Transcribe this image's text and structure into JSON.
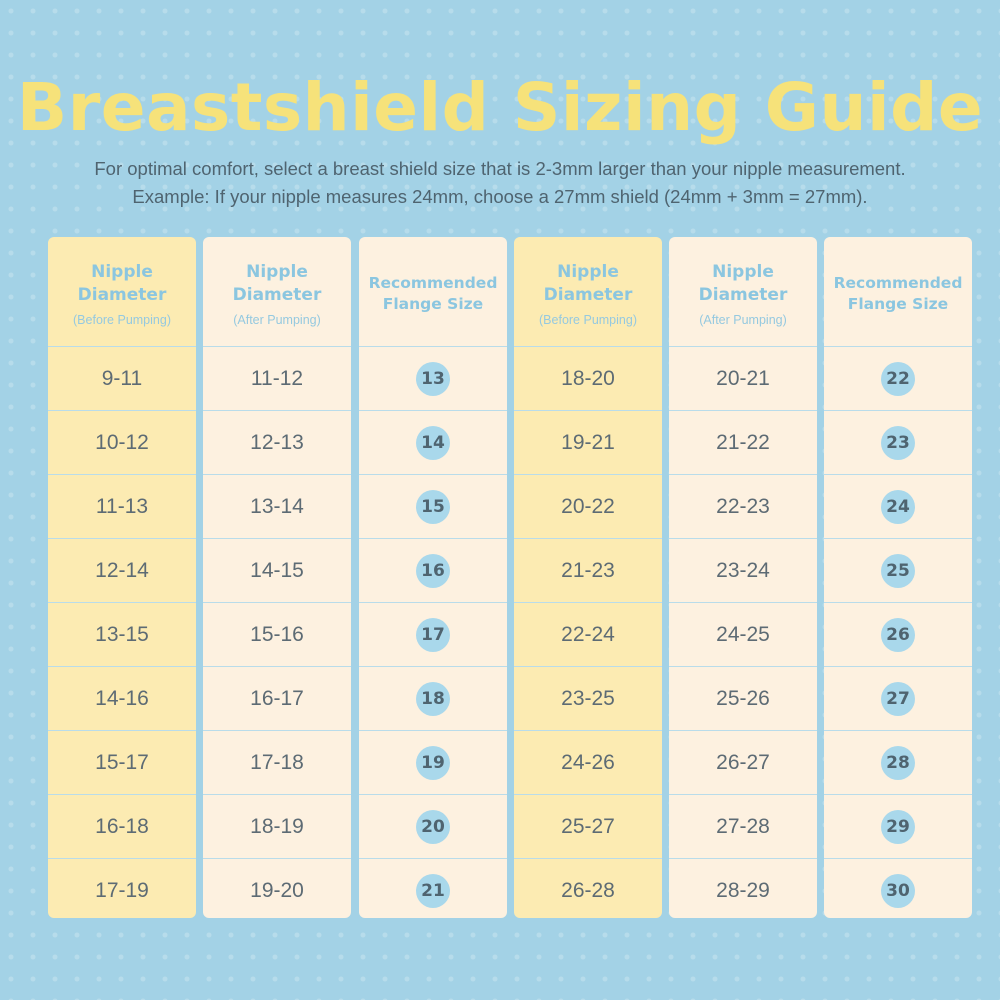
{
  "title": "Breastshield Sizing Guide",
  "subtitle_line1": "For optimal comfort, select a breast shield size that is 2-3mm larger than your nipple measurement.",
  "subtitle_line2": "Example: If your nipple measures 24mm, choose a 27mm shield (24mm + 3mm = 27mm).",
  "colors": {
    "background": "#a3d2e6",
    "title": "#f6e27a",
    "yellow_column": "#fcebb2",
    "cream_column": "#fdf1e0",
    "badge": "#a9d8eb",
    "header_text": "#8bc6e0"
  },
  "columns": [
    {
      "type": "text",
      "tone": "yellow",
      "header_lines": [
        "Nipple",
        "Diameter"
      ],
      "note": "(Before Pumping)",
      "rows": [
        "9-11",
        "10-12",
        "11-13",
        "12-14",
        "13-15",
        "14-16",
        "15-17",
        "16-18",
        "17-19"
      ]
    },
    {
      "type": "text",
      "tone": "cream",
      "header_lines": [
        "Nipple",
        "Diameter"
      ],
      "note": "(After Pumping)",
      "rows": [
        "11-12",
        "12-13",
        "13-14",
        "14-15",
        "15-16",
        "16-17",
        "17-18",
        "18-19",
        "19-20"
      ]
    },
    {
      "type": "badge",
      "tone": "cream",
      "header_lines": [
        "Recommended",
        "Flange Size"
      ],
      "note": "",
      "rows": [
        "13",
        "14",
        "15",
        "16",
        "17",
        "18",
        "19",
        "20",
        "21"
      ]
    },
    {
      "type": "text",
      "tone": "yellow",
      "header_lines": [
        "Nipple",
        "Diameter"
      ],
      "note": "(Before Pumping)",
      "rows": [
        "18-20",
        "19-21",
        "20-22",
        "21-23",
        "22-24",
        "23-25",
        "24-26",
        "25-27",
        "26-28"
      ]
    },
    {
      "type": "text",
      "tone": "cream",
      "header_lines": [
        "Nipple",
        "Diameter"
      ],
      "note": "(After Pumping)",
      "rows": [
        "20-21",
        "21-22",
        "22-23",
        "23-24",
        "24-25",
        "25-26",
        "26-27",
        "27-28",
        "28-29"
      ]
    },
    {
      "type": "badge",
      "tone": "cream",
      "header_lines": [
        "Recommended",
        "Flange Size"
      ],
      "note": "",
      "rows": [
        "22",
        "23",
        "24",
        "25",
        "26",
        "27",
        "28",
        "29",
        "30"
      ]
    }
  ]
}
